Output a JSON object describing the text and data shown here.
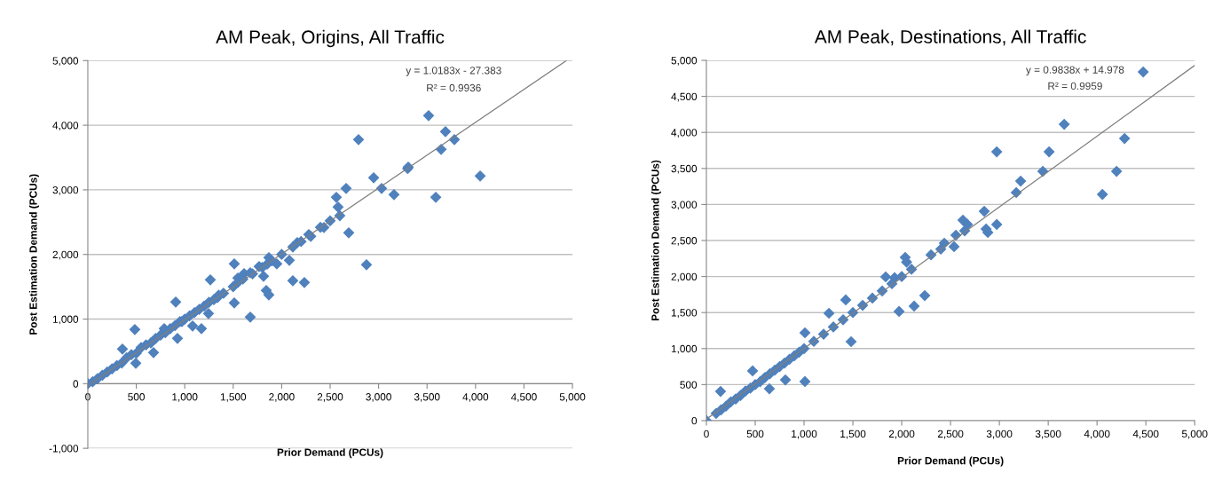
{
  "chart_data": [
    {
      "type": "scatter",
      "title": "AM Peak, Origins, All Traffic",
      "xlabel": "Prior Demand (PCUs)",
      "ylabel": "Post Estimation Demand (PCUs)",
      "marker": "diamond",
      "grid": "y",
      "xlim": [
        0,
        5000
      ],
      "ylim": [
        -1000,
        5000
      ],
      "xticks": [
        0,
        500,
        {
          "value": 1000,
          "label": "1,000"
        },
        {
          "value": 1500,
          "label": "1,500"
        },
        {
          "value": 2000,
          "label": "2,000"
        },
        {
          "value": 2500,
          "label": "2,500"
        },
        {
          "value": 3000,
          "label": "3,000"
        },
        {
          "value": 3500,
          "label": "3,500"
        },
        {
          "value": 4000,
          "label": "4,000"
        },
        {
          "value": 4500,
          "label": "4,500"
        },
        {
          "value": 5000,
          "label": "5,000"
        }
      ],
      "yticks": [
        {
          "value": -1000,
          "label": "-1,000"
        },
        0,
        {
          "value": 1000,
          "label": "1,000"
        },
        {
          "value": 2000,
          "label": "2,000"
        },
        {
          "value": 3000,
          "label": "3,000"
        },
        {
          "value": 4000,
          "label": "4,000"
        },
        {
          "value": 5000,
          "label": "5,000"
        }
      ],
      "annotations": [
        "y = 1.0183x - 27.383",
        "R² = 0.9936"
      ],
      "series": [
        {
          "type": "scatter",
          "color": "#4f81bd",
          "x": [
            3516,
            3690,
            3645,
            3782,
            4048,
            2793,
            2949,
            3031,
            3159,
            3590,
            2875,
            3306,
            2665,
            2564,
            2582,
            2692,
            2436,
            2280,
            2161,
            2115,
            2079,
            2115,
            2234,
            1868,
            1950,
            1813,
            1841,
            1868,
            1676,
            1767,
            1676,
            1511,
            1511,
            1548,
            1612,
            1264,
            1337,
            1245,
            1172,
            1081,
            971,
            907,
            925,
            788,
            678,
            495,
            485,
            357,
            0,
            50,
            100,
            150,
            200,
            250,
            300,
            350,
            400,
            450,
            500,
            550,
            600,
            650,
            700,
            750,
            800,
            850,
            900,
            950,
            1000,
            1050,
            1100,
            1150,
            1200,
            1250,
            1300,
            1350,
            1400,
            1500,
            1550,
            1600,
            1700,
            1800,
            1850,
            1900,
            2000,
            2200,
            2300,
            2400,
            2500,
            2600,
            3300
          ],
          "values": [
            4148,
            3901,
            3626,
            3777,
            3214,
            3777,
            3187,
            3022,
            2926,
            2885,
            1841,
            3352,
            3022,
            2885,
            2733,
            2335,
            2418,
            2308,
            2184,
            2115,
            1909,
            1593,
            1566,
            1950,
            1854,
            1662,
            1442,
            1374,
            1030,
            1813,
            1717,
            1854,
            1250,
            1635,
            1703,
            1607,
            1332,
            1085,
            852,
            893,
            962,
            1264,
            700,
            852,
            481,
            316,
            838,
            536,
            0,
            30,
            80,
            130,
            180,
            230,
            280,
            320,
            400,
            450,
            470,
            560,
            600,
            630,
            700,
            750,
            790,
            850,
            900,
            960,
            1000,
            1050,
            1100,
            1150,
            1200,
            1260,
            1300,
            1370,
            1400,
            1500,
            1570,
            1620,
            1700,
            1800,
            1850,
            1900,
            2000,
            2200,
            2280,
            2420,
            2520,
            2600,
            3330
          ]
        },
        {
          "type": "line",
          "color": "#7f7f7f",
          "marker": "none",
          "x": [
            0,
            4937
          ],
          "values": [
            -30,
            5000
          ]
        }
      ]
    },
    {
      "type": "scatter",
      "title": "AM Peak, Destinations, All Traffic",
      "xlabel": "Prior Demand (PCUs)",
      "ylabel": "Post Estimation Demand (PCUs)",
      "marker": "diamond",
      "grid": "y",
      "xlim": [
        0,
        5000
      ],
      "ylim": [
        0,
        5000
      ],
      "xticks": [
        0,
        500,
        {
          "value": 1000,
          "label": "1,000"
        },
        {
          "value": 1500,
          "label": "1,500"
        },
        {
          "value": 2000,
          "label": "2,000"
        },
        {
          "value": 2500,
          "label": "2,500"
        },
        {
          "value": 3000,
          "label": "3,000"
        },
        {
          "value": 3500,
          "label": "3,500"
        },
        {
          "value": 4000,
          "label": "4,000"
        },
        {
          "value": 4500,
          "label": "4,500"
        },
        {
          "value": 5000,
          "label": "5,000"
        }
      ],
      "yticks": [
        0,
        500,
        {
          "value": 1000,
          "label": "1,000"
        },
        {
          "value": 1500,
          "label": "1,500"
        },
        {
          "value": 2000,
          "label": "2,000"
        },
        {
          "value": 2500,
          "label": "2,500"
        },
        {
          "value": 3000,
          "label": "3,000"
        },
        {
          "value": 3500,
          "label": "3,500"
        },
        {
          "value": 4000,
          "label": "4,000"
        },
        {
          "value": 4500,
          "label": "4,500"
        },
        {
          "value": 5000,
          "label": "5,000"
        }
      ],
      "annotations": [
        "y = 0.9838x + 14.978",
        "R² = 0.9959"
      ],
      "series": [
        {
          "type": "scatter",
          "color": "#4f81bd",
          "x": [
            4473,
            3664,
            4282,
            2973,
            3509,
            3445,
            4200,
            4055,
            3218,
            3173,
            2845,
            2973,
            2864,
            2882,
            2627,
            2673,
            2645,
            2536,
            2555,
            2436,
            2236,
            2127,
            1973,
            2036,
            1927,
            1836,
            1482,
            1427,
            1255,
            1009,
            1009,
            809,
            645,
            145,
            473,
            0,
            100,
            150,
            200,
            250,
            300,
            350,
            400,
            450,
            500,
            550,
            600,
            650,
            700,
            750,
            800,
            850,
            900,
            950,
            1000,
            1100,
            1200,
            1300,
            1400,
            1500,
            1600,
            1700,
            1800,
            1900,
            2000,
            2050,
            2100,
            2300,
            2400
          ],
          "values": [
            4840,
            4113,
            3916,
            3731,
            3731,
            3460,
            3460,
            3140,
            3325,
            3165,
            2906,
            2722,
            2660,
            2611,
            2783,
            2722,
            2635,
            2414,
            2574,
            2463,
            1736,
            1589,
            1515,
            2266,
            1983,
            1995,
            1096,
            1675,
            1490,
            1219,
            542,
            566,
            443,
            406,
            690,
            0,
            100,
            150,
            200,
            260,
            300,
            350,
            410,
            450,
            500,
            540,
            600,
            650,
            700,
            750,
            800,
            850,
            900,
            950,
            1000,
            1100,
            1200,
            1300,
            1400,
            1500,
            1600,
            1700,
            1800,
            1900,
            2000,
            2200,
            2100,
            2300,
            2380
          ]
        },
        {
          "type": "line",
          "color": "#7f7f7f",
          "marker": "none",
          "x": [
            0,
            5000
          ],
          "values": [
            20,
            4930
          ]
        }
      ]
    }
  ]
}
